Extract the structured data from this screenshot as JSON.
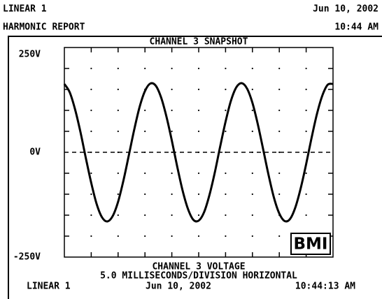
{
  "header": {
    "left_top": "LINEAR 1",
    "right_top": "Jun 10, 2002",
    "left_bottom": "HARMONIC REPORT",
    "right_bottom": "10:44 AM"
  },
  "chart_data": {
    "type": "line",
    "title": "CHANNEL 3 SNAPSHOT",
    "xlabel": [
      "CHANNEL 3 VOLTAGE",
      "5.0 MILLISECONDS/DIVISION HORIZONTAL"
    ],
    "x": [
      0,
      1,
      2,
      3,
      4,
      5,
      6,
      7,
      8,
      9,
      10,
      11,
      12,
      13,
      14,
      15,
      16,
      17,
      18,
      19,
      20,
      21,
      22,
      23,
      24,
      25,
      26,
      27,
      28,
      29,
      30,
      31,
      32,
      33,
      34,
      35,
      36,
      37,
      38,
      39,
      40,
      41,
      42,
      43,
      44,
      45,
      46,
      47,
      48,
      49,
      50
    ],
    "series": [
      {
        "name": "CHANNEL 3 VOLTAGE",
        "color": "#000000",
        "values": [
          163,
          143,
          102,
          48,
          -14,
          -73,
          -123,
          -155,
          -165,
          -152,
          -118,
          -67,
          -7,
          54,
          108,
          146,
          164,
          159,
          131,
          85,
          28,
          -34,
          -91,
          -135,
          -161,
          -163,
          -143,
          -102,
          -48,
          14,
          73,
          123,
          155,
          165,
          152,
          118,
          67,
          7,
          -54,
          -108,
          -146,
          -164,
          -159,
          -131,
          -85,
          -28,
          34,
          91,
          135,
          161,
          163
        ]
      }
    ],
    "xlim": [
      0,
      50
    ],
    "ylim": [
      -250,
      250
    ],
    "yticks": [
      {
        "value": 250,
        "label": "250V"
      },
      {
        "value": 0,
        "label": "0V"
      },
      {
        "value": -250,
        "label": "-250V"
      }
    ],
    "minor_xticks": [
      5,
      10,
      15,
      20,
      25,
      30,
      35,
      40,
      45
    ],
    "minor_yticks": [
      -200,
      -150,
      -100,
      -50,
      50,
      100,
      150,
      200
    ],
    "grid": true,
    "zero_line": "dashed"
  },
  "footer": {
    "left": "LINEAR 1",
    "center": "Jun 10, 2002",
    "right": "10:44:13 AM"
  },
  "logo": "BMI"
}
